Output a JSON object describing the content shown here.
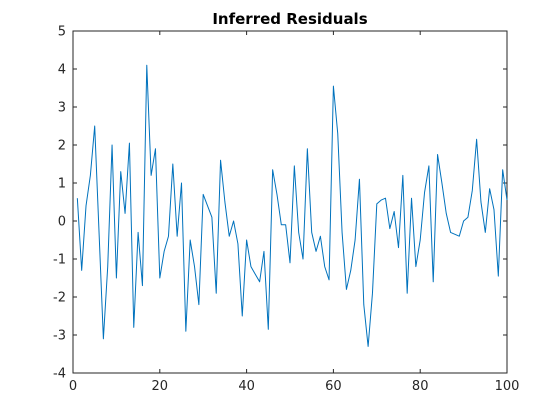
{
  "chart_data": {
    "type": "line",
    "title": "Inferred Residuals",
    "xlabel": "",
    "ylabel": "",
    "xlim": [
      0,
      100
    ],
    "ylim": [
      -4,
      5
    ],
    "xticks": [
      "0",
      "20",
      "40",
      "60",
      "80",
      "100"
    ],
    "yticks": [
      "-4",
      "-3",
      "-2",
      "-1",
      "0",
      "1",
      "2",
      "3",
      "4",
      "5"
    ],
    "grid": false,
    "series": [
      {
        "color": "#0072bd",
        "x": [
          1,
          2,
          3,
          4,
          5,
          6,
          7,
          8,
          9,
          10,
          11,
          12,
          13,
          14,
          15,
          16,
          17,
          18,
          19,
          20,
          21,
          22,
          23,
          24,
          25,
          26,
          27,
          28,
          29,
          30,
          31,
          32,
          33,
          34,
          35,
          36,
          37,
          38,
          39,
          40,
          41,
          42,
          43,
          44,
          45,
          46,
          47,
          48,
          49,
          50,
          51,
          52,
          53,
          54,
          55,
          56,
          57,
          58,
          59,
          60,
          61,
          62,
          63,
          64,
          65,
          66,
          67,
          68,
          69,
          70,
          71,
          72,
          73,
          74,
          75,
          76,
          77,
          78,
          79,
          80,
          81,
          82,
          83,
          84,
          85,
          86,
          87,
          88,
          89,
          90,
          91,
          92,
          93,
          94,
          95,
          96,
          97,
          98,
          99,
          100
        ],
        "values": [
          0.6,
          -1.3,
          0.4,
          1.2,
          2.5,
          -0.3,
          -3.1,
          -1.2,
          2.0,
          -1.5,
          1.3,
          0.2,
          2.05,
          -2.8,
          -0.3,
          -1.7,
          4.1,
          1.2,
          1.9,
          -1.5,
          -0.8,
          -0.4,
          1.5,
          -0.4,
          1.0,
          -2.9,
          -0.5,
          -1.2,
          -2.2,
          0.7,
          0.4,
          0.1,
          -1.9,
          1.6,
          0.5,
          -0.4,
          0.0,
          -0.6,
          -2.5,
          -0.5,
          -1.2,
          -1.4,
          -1.6,
          -0.8,
          -2.85,
          1.35,
          0.7,
          -0.1,
          -0.1,
          -1.1,
          1.45,
          -0.3,
          -1.0,
          1.9,
          -0.3,
          -0.8,
          -0.4,
          -1.2,
          -1.55,
          3.55,
          2.3,
          -0.3,
          -1.8,
          -1.3,
          -0.5,
          1.1,
          -2.2,
          -3.3,
          -1.9,
          0.45,
          0.55,
          0.6,
          -0.2,
          0.25,
          -0.7,
          1.2,
          -1.9,
          0.6,
          -1.2,
          -0.5,
          0.75,
          1.45,
          -1.6,
          1.75,
          1.0,
          0.2,
          -0.3,
          -0.35,
          -0.4,
          0.0,
          0.1,
          0.8,
          2.15,
          0.5,
          -0.3,
          0.85,
          0.3,
          -1.45,
          1.35,
          0.55
        ]
      }
    ]
  }
}
